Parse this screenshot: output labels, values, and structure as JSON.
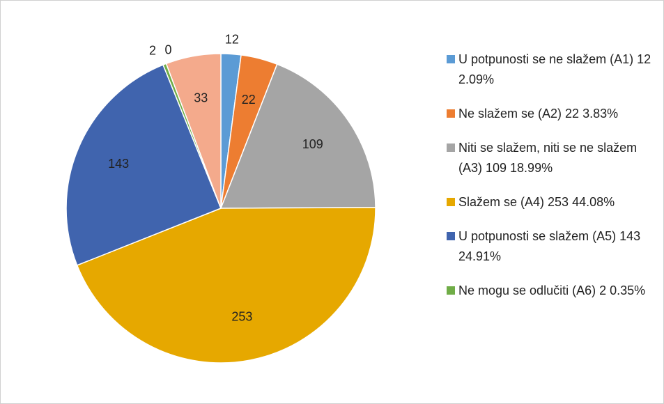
{
  "chart_data": {
    "type": "pie",
    "categories": [
      "U potpunosti se ne slažem (A1) 12 2.09%",
      "Ne slažem se (A2) 22 3.83%",
      "Niti se slažem, niti se ne slažem (A3) 109 18.99%",
      "Slažem se (A4) 253 44.08%",
      "U potpunosti se slažem (A5) 143 24.91%",
      "Ne mogu se odlučiti (A6) 2 0.35%",
      null,
      null
    ],
    "values": [
      12,
      22,
      109,
      253,
      143,
      2,
      0,
      33
    ],
    "colors": [
      "#5b9bd5",
      "#ed7d31",
      "#a5a5a5",
      "#e6a800",
      "#4064ae",
      "#70ad47",
      "#264478",
      "#f4aa8c"
    ]
  }
}
